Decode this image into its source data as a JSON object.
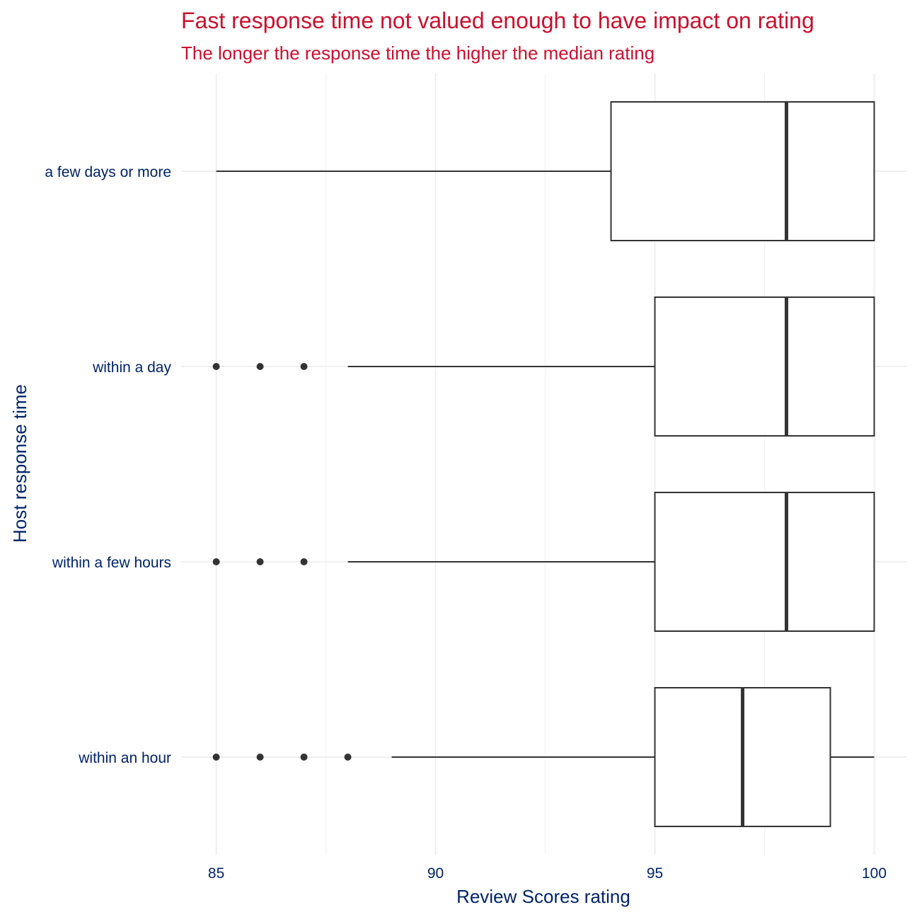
{
  "colors": {
    "title": "#C8102E",
    "axis_text": "#002366",
    "box_stroke": "#333333",
    "grid_major": "#EBEBEB",
    "grid_minor": "#F2F2F2"
  },
  "chart_data": {
    "type": "boxplot",
    "orientation": "horizontal",
    "title": "Fast response time not valued enough to have impact on rating",
    "subtitle": "The longer the response time the higher the median rating",
    "xlabel": "Review Scores rating",
    "ylabel": "Host response time",
    "xlim": [
      84.2,
      100.75
    ],
    "xticks": [
      85,
      90,
      95,
      100
    ],
    "xtick_labels": [
      "85",
      "90",
      "95",
      "100"
    ],
    "grid": true,
    "legend": "none",
    "categories": [
      "within an hour",
      "within a few hours",
      "within a day",
      "a few days or more"
    ],
    "boxes": [
      {
        "category": "within an hour",
        "whisker_low": 89,
        "q1": 95,
        "median": 97,
        "q3": 99,
        "whisker_high": 100,
        "outliers": [
          85,
          86,
          87,
          88
        ]
      },
      {
        "category": "within a few hours",
        "whisker_low": 88,
        "q1": 95,
        "median": 98,
        "q3": 100,
        "whisker_high": 100,
        "outliers": [
          85,
          86,
          87
        ]
      },
      {
        "category": "within a day",
        "whisker_low": 88,
        "q1": 95,
        "median": 98,
        "q3": 100,
        "whisker_high": 100,
        "outliers": [
          85,
          86,
          87
        ]
      },
      {
        "category": "a few days or more",
        "whisker_low": 85,
        "q1": 94,
        "median": 98,
        "q3": 100,
        "whisker_high": 100,
        "outliers": []
      }
    ]
  }
}
